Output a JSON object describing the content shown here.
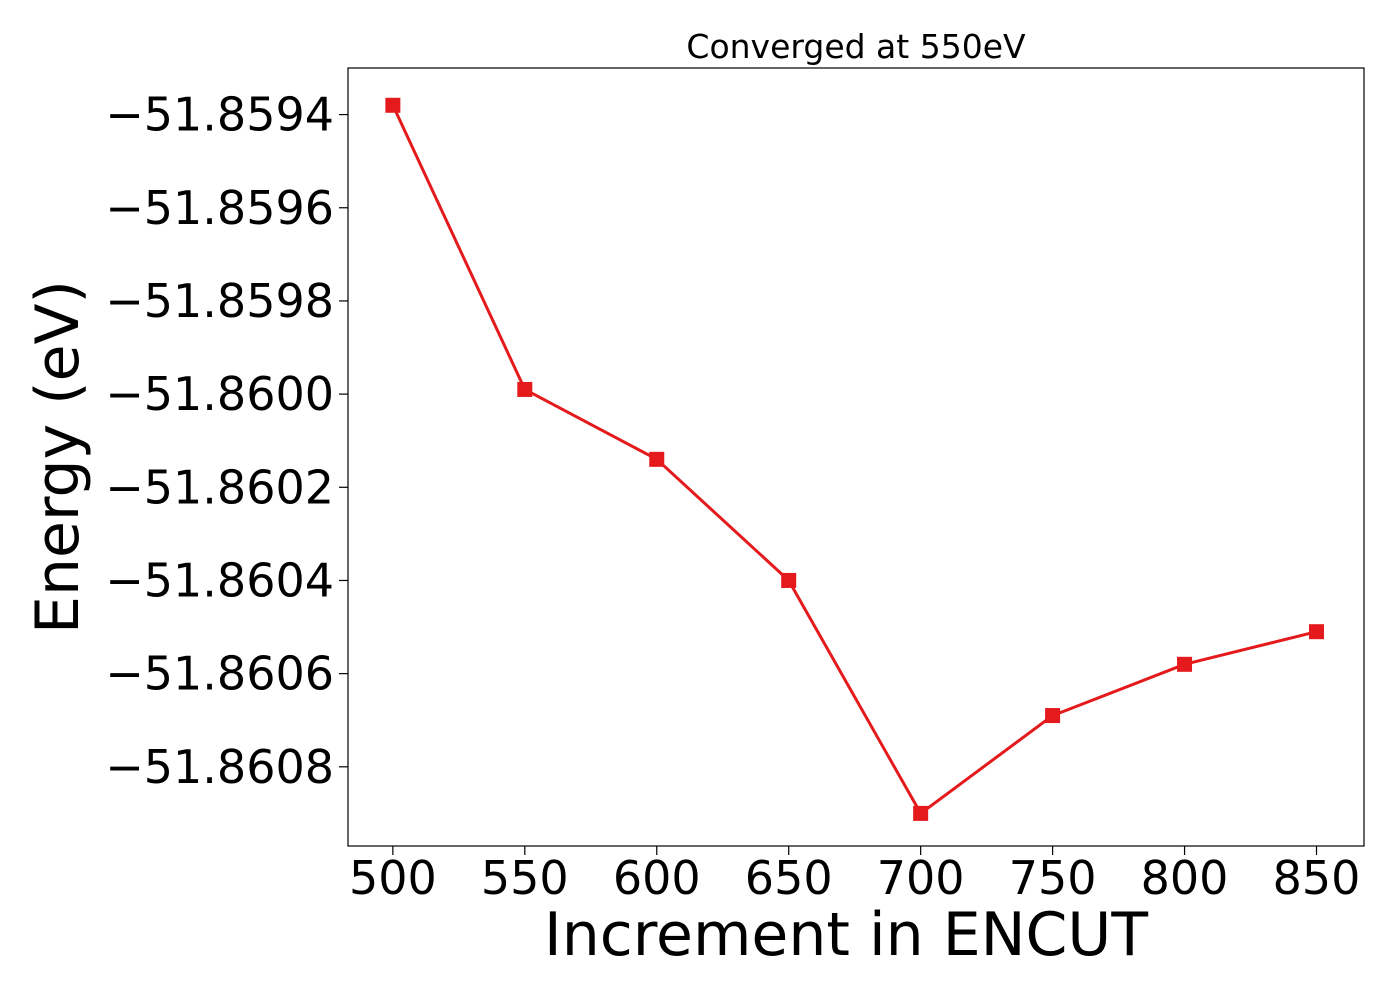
{
  "chart_data": {
    "type": "line",
    "title": "Converged at 550eV",
    "xlabel": "Increment in ENCUT",
    "ylabel": "Energy (eV)",
    "x": [
      500,
      550,
      600,
      650,
      700,
      750,
      800,
      850
    ],
    "series": [
      {
        "values": [
          -51.85938,
          -51.85999,
          -51.86014,
          -51.8604,
          -51.8609,
          -51.86069,
          -51.86058,
          -51.86051
        ],
        "color": "#e41a1c",
        "marker": "square"
      }
    ],
    "xticks": [
      500,
      550,
      600,
      650,
      700,
      750,
      800,
      850
    ],
    "xtick_labels": [
      "500",
      "550",
      "600",
      "650",
      "700",
      "750",
      "800",
      "850"
    ],
    "yticks": [
      -51.8594,
      -51.8596,
      -51.8598,
      -51.86,
      -51.8602,
      -51.8604,
      -51.8606,
      -51.8608
    ],
    "ytick_labels": [
      "−51.8594",
      "−51.8596",
      "−51.8598",
      "−51.8600",
      "−51.8602",
      "−51.8604",
      "−51.8606",
      "−51.8608"
    ],
    "xlim": [
      483,
      868
    ],
    "ylim": [
      -51.86097,
      -51.8593
    ],
    "grid": false,
    "legend": "none"
  }
}
